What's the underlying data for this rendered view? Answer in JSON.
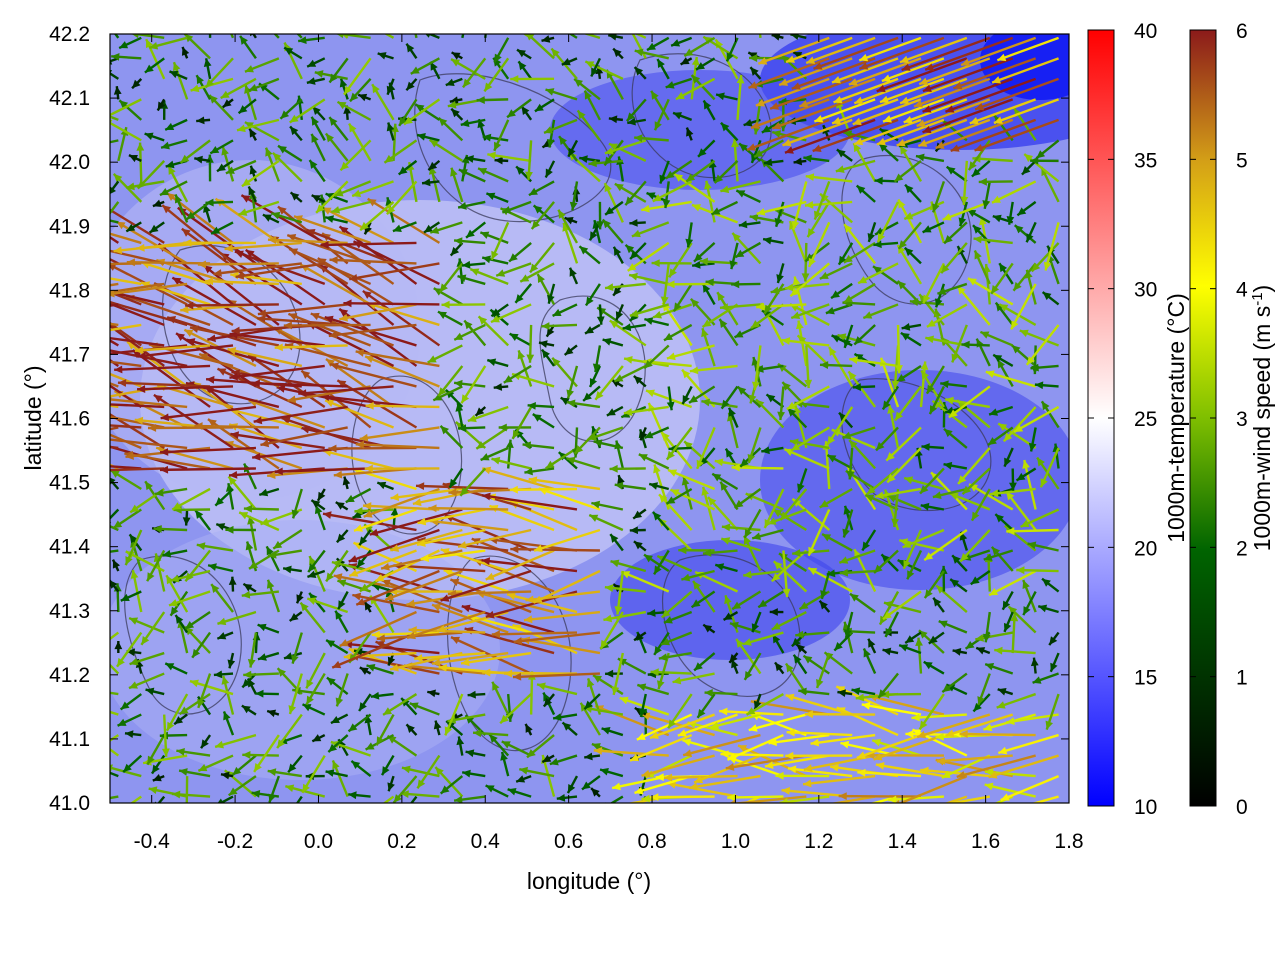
{
  "chart_data": {
    "type": "heatmap",
    "title": "",
    "xlabel": "longitude (°)",
    "ylabel": "latitude (°)",
    "xlim": [
      -0.5,
      1.8
    ],
    "ylim": [
      41.0,
      42.2
    ],
    "x_ticks": [
      "-0.4",
      "-0.2",
      "0.0",
      "0.2",
      "0.4",
      "0.6",
      "0.8",
      "1.0",
      "1.2",
      "1.4",
      "1.6",
      "1.8"
    ],
    "y_ticks": [
      "41.0",
      "41.1",
      "41.2",
      "41.3",
      "41.4",
      "41.5",
      "41.6",
      "41.7",
      "41.8",
      "41.9",
      "42.0",
      "42.1",
      "42.2"
    ],
    "temperature_colorbar": {
      "label": "1000m-temperature (°C)",
      "range": [
        10,
        40
      ],
      "ticks": [
        "10",
        "15",
        "20",
        "25",
        "30",
        "35",
        "40"
      ],
      "colors": [
        "#0000ff",
        "#ffffff",
        "#ff0000"
      ]
    },
    "wind_colorbar": {
      "label_main": "1000m-wind speed (m s",
      "label_sup": "-1",
      "label_end": ")",
      "range": [
        0,
        6
      ],
      "ticks": [
        "0",
        "1",
        "2",
        "3",
        "4",
        "5",
        "6"
      ],
      "colors": [
        "#000000",
        "#006400",
        "#7fbf00",
        "#ffff00",
        "#d4a017",
        "#8b1a1a"
      ]
    },
    "temperature_field_note": "mostly 14-20 °C; warmest (~21-22 °C) around lon 0.2-0.6, lat 41.4-41.7; coolest (~11-13 °C) near lon 1.3-1.8, lat 42.0-42.2",
    "wind_regions": [
      {
        "lon": [
          -0.5,
          0.3
        ],
        "lat": [
          41.5,
          41.9
        ],
        "speed": 5.5,
        "direction": "westward, slightly south-to-north"
      },
      {
        "lon": [
          0.2,
          0.7
        ],
        "lat": [
          41.2,
          41.5
        ],
        "speed": 5.0,
        "direction": "westward / north-westward"
      },
      {
        "lon": [
          0.8,
          1.8
        ],
        "lat": [
          41.0,
          41.15
        ],
        "speed": 4.0,
        "direction": "westward"
      },
      {
        "lon": [
          0.8,
          1.8
        ],
        "lat": [
          41.3,
          42.0
        ],
        "speed": 2.0,
        "direction": "variable, mostly westward"
      },
      {
        "lon": [
          1.2,
          1.8
        ],
        "lat": [
          42.05,
          42.2
        ],
        "speed": 5.0,
        "direction": "south-westward"
      }
    ]
  }
}
